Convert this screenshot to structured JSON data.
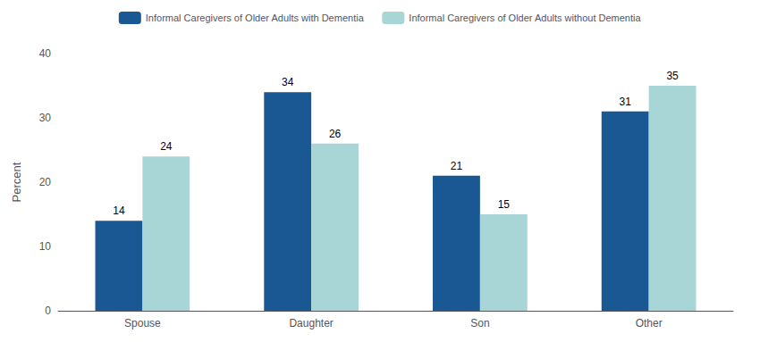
{
  "chart_data": {
    "type": "bar",
    "categories": [
      "Spouse",
      "Daughter",
      "Son",
      "Other"
    ],
    "series": [
      {
        "name": "Informal Caregivers of Older Adults with Dementia",
        "color": "#1a5894",
        "values": [
          14,
          34,
          21,
          31
        ]
      },
      {
        "name": "Informal Caregivers of Older Adults without Dementia",
        "color": "#a8d5d5",
        "values": [
          24,
          26,
          15,
          35
        ]
      }
    ],
    "ylabel": "Percent",
    "ylim": [
      0,
      40
    ],
    "yticks": [
      0,
      10,
      20,
      30,
      40
    ],
    "grid": false,
    "legend": "top",
    "data_labels": true
  }
}
